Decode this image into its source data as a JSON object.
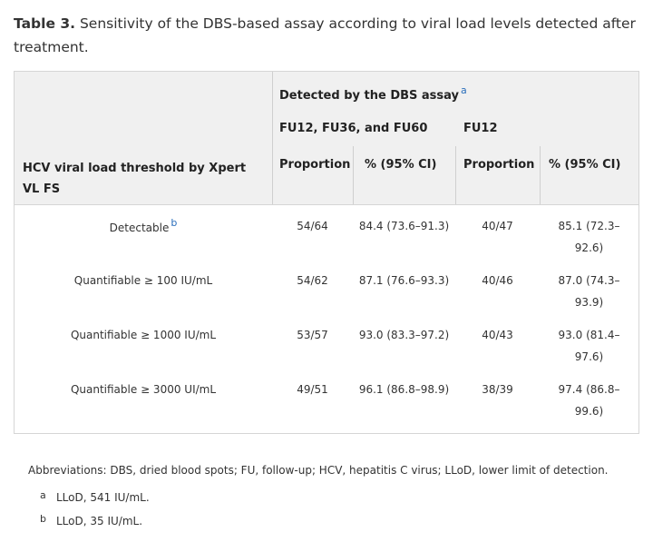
{
  "caption": {
    "label": "Table 3.",
    "text": " Sensitivity of the DBS-based assay according to viral load levels detected after treatment."
  },
  "table": {
    "row_header_label": "HCV viral load threshold by Xpert VL FS",
    "group_header": "Detected by the DBS assay",
    "group_header_note": "a",
    "subgroup_1": "FU12, FU36, and FU60",
    "subgroup_2": "FU12",
    "col_proportion_1": "Proportion",
    "col_ci_1": "% (95% CI)",
    "col_proportion_2": "Proportion",
    "col_ci_2": "% (95% CI)",
    "rows": [
      {
        "label": "Detectable",
        "note": "b",
        "prop1": "54/64",
        "ci1": "84.4 (73.6–91.3)",
        "prop2": "40/47",
        "ci2": "85.1 (72.3–92.6)"
      },
      {
        "label": "Quantifiable ≥ 100 IU/mL",
        "note": "",
        "prop1": "54/62",
        "ci1": "87.1 (76.6–93.3)",
        "prop2": "40/46",
        "ci2": "87.0 (74.3–93.9)"
      },
      {
        "label": "Quantifiable ≥ 1000 IU/mL",
        "note": "",
        "prop1": "53/57",
        "ci1": "93.0 (83.3–97.2)",
        "prop2": "40/43",
        "ci2": "93.0 (81.4–97.6)"
      },
      {
        "label": "Quantifiable ≥ 3000 UI/mL",
        "note": "",
        "prop1": "49/51",
        "ci1": "96.1 (86.8–98.9)",
        "prop2": "38/39",
        "ci2": "97.4 (86.8–99.6)"
      }
    ]
  },
  "footer": {
    "abbreviations": "Abbreviations: DBS, dried blood spots; FU, follow-up; HCV, hepatitis C virus; LLoD, lower limit of detection.",
    "notes": [
      {
        "mark": "a",
        "text": "LLoD, 541 IU/mL."
      },
      {
        "mark": "b",
        "text": "LLoD, 35 IU/mL."
      }
    ]
  }
}
